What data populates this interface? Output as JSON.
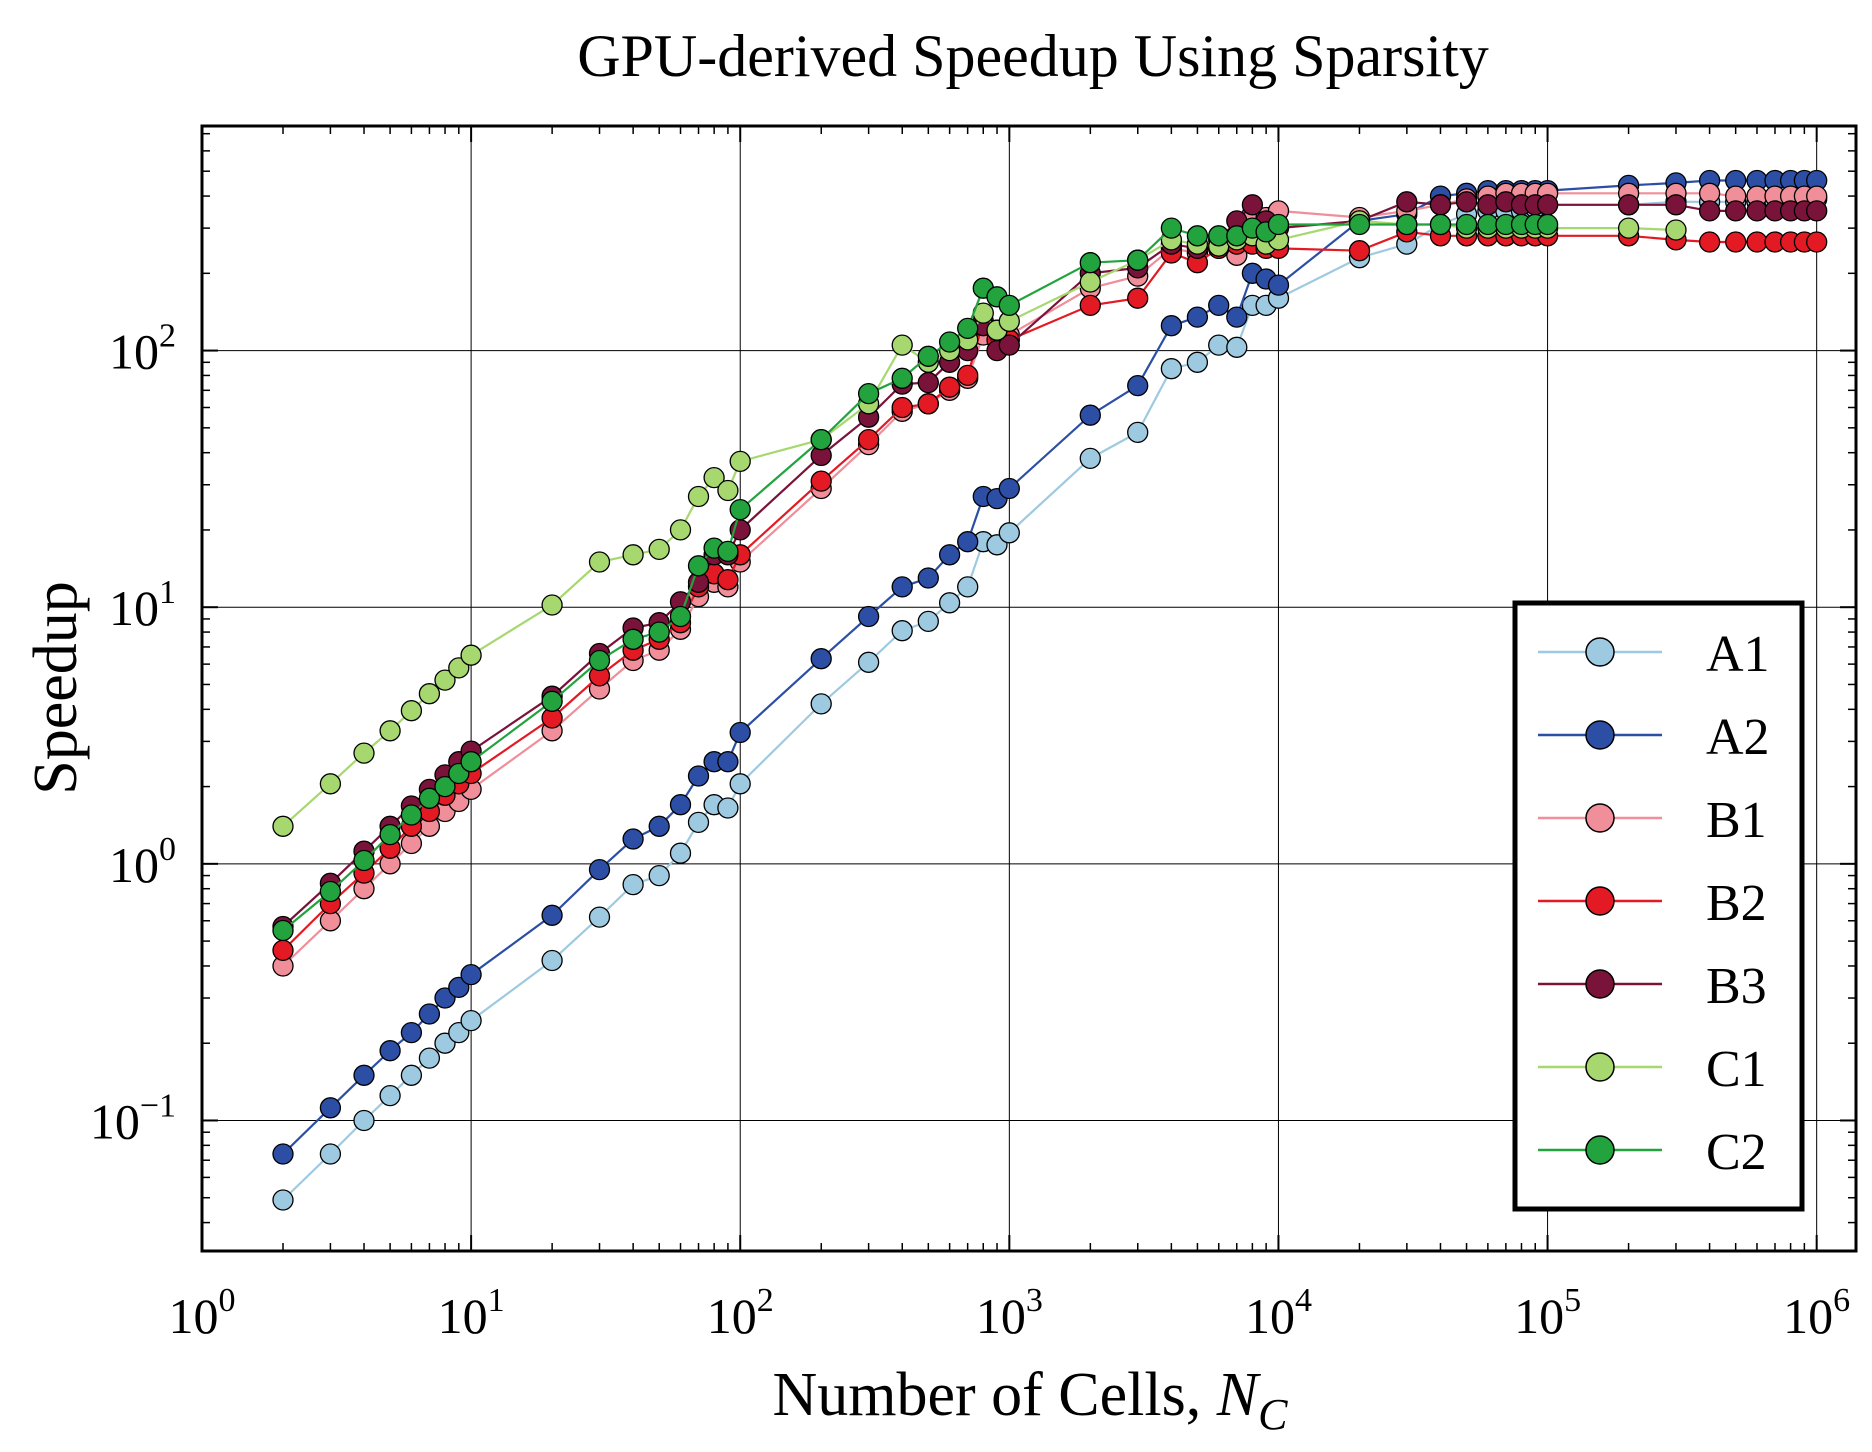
{
  "chart_data": {
    "type": "line",
    "title": "GPU-derived Speedup Using Sparsity",
    "xlabel": "Number of Cells, ",
    "xlabel_symbol": "N",
    "xlabel_subscript": "C",
    "ylabel": "Speedup",
    "xscale": "log",
    "yscale": "log",
    "xlim": [
      1,
      1400000
    ],
    "ylim": [
      0.031,
      750
    ],
    "grid": true,
    "legend_position": "right",
    "x_tick_labels": [
      {
        "value": 1,
        "base": "10",
        "exp": "0"
      },
      {
        "value": 10,
        "base": "10",
        "exp": "1"
      },
      {
        "value": 100,
        "base": "10",
        "exp": "2"
      },
      {
        "value": 1000,
        "base": "10",
        "exp": "3"
      },
      {
        "value": 10000,
        "base": "10",
        "exp": "4"
      },
      {
        "value": 100000,
        "base": "10",
        "exp": "5"
      },
      {
        "value": 1000000,
        "base": "10",
        "exp": "6"
      }
    ],
    "y_tick_labels": [
      {
        "value": 0.1,
        "base": "10",
        "exp": "−1"
      },
      {
        "value": 1,
        "base": "10",
        "exp": "0"
      },
      {
        "value": 10,
        "base": "10",
        "exp": "1"
      },
      {
        "value": 100,
        "base": "10",
        "exp": "2"
      }
    ],
    "series": [
      {
        "name": "A1",
        "color": "#9ecae1",
        "x": [
          2,
          3,
          4,
          5,
          6,
          7,
          8,
          9,
          10,
          20,
          30,
          40,
          50,
          60,
          70,
          80,
          90,
          100,
          200,
          300,
          400,
          500,
          600,
          700,
          800,
          900,
          1000,
          2000,
          3000,
          4000,
          5000,
          6000,
          7000,
          8000,
          9000,
          10000,
          20000,
          30000,
          40000,
          50000,
          60000,
          70000,
          80000,
          90000,
          100000,
          200000,
          300000,
          400000,
          500000,
          600000,
          700000,
          800000,
          900000,
          1000000
        ],
        "y": [
          0.049,
          0.074,
          0.1,
          0.125,
          0.15,
          0.175,
          0.2,
          0.22,
          0.245,
          0.42,
          0.62,
          0.83,
          0.9,
          1.1,
          1.45,
          1.7,
          1.65,
          2.05,
          4.2,
          6.1,
          8.1,
          8.8,
          10.4,
          12,
          18,
          17.5,
          19.5,
          38,
          48,
          85,
          90,
          105,
          103,
          150,
          150,
          160,
          230,
          260,
          310,
          340,
          350,
          350,
          350,
          360,
          370,
          370,
          380,
          380,
          380,
          380,
          380,
          390,
          390,
          390
        ]
      },
      {
        "name": "A2",
        "color": "#2c4fa5",
        "x": [
          2,
          3,
          4,
          5,
          6,
          7,
          8,
          9,
          10,
          20,
          30,
          40,
          50,
          60,
          70,
          80,
          90,
          100,
          200,
          300,
          400,
          500,
          600,
          700,
          800,
          900,
          1000,
          2000,
          3000,
          4000,
          5000,
          6000,
          7000,
          8000,
          9000,
          10000,
          20000,
          30000,
          40000,
          50000,
          60000,
          70000,
          80000,
          90000,
          100000,
          200000,
          300000,
          400000,
          500000,
          600000,
          700000,
          800000,
          900000,
          1000000
        ],
        "y": [
          0.074,
          0.112,
          0.15,
          0.187,
          0.22,
          0.26,
          0.3,
          0.33,
          0.37,
          0.63,
          0.95,
          1.25,
          1.4,
          1.7,
          2.2,
          2.5,
          2.5,
          3.25,
          6.3,
          9.2,
          12,
          13,
          16,
          18,
          27,
          26.5,
          29,
          56,
          73,
          125,
          135,
          150,
          135,
          200,
          190,
          180,
          320,
          340,
          400,
          410,
          420,
          420,
          420,
          420,
          420,
          440,
          450,
          460,
          460,
          460,
          460,
          460,
          460,
          460
        ]
      },
      {
        "name": "B1",
        "color": "#f08e9a",
        "x": [
          2,
          3,
          4,
          5,
          6,
          7,
          8,
          9,
          10,
          20,
          30,
          40,
          50,
          60,
          70,
          80,
          90,
          100,
          200,
          300,
          400,
          500,
          600,
          700,
          800,
          900,
          1000,
          2000,
          3000,
          4000,
          5000,
          6000,
          7000,
          8000,
          9000,
          10000,
          20000,
          30000,
          40000,
          50000,
          60000,
          70000,
          80000,
          90000,
          100000,
          200000,
          300000,
          400000,
          500000,
          600000,
          700000,
          800000,
          900000,
          1000000
        ],
        "y": [
          0.4,
          0.6,
          0.8,
          1.0,
          1.2,
          1.4,
          1.6,
          1.75,
          1.95,
          3.3,
          4.8,
          6.2,
          6.8,
          8.2,
          11,
          12.5,
          12,
          15,
          29,
          43,
          58,
          62,
          70,
          78,
          115,
          120,
          115,
          175,
          195,
          250,
          240,
          250,
          235,
          340,
          330,
          350,
          330,
          350,
          370,
          390,
          400,
          410,
          410,
          410,
          410,
          410,
          410,
          410,
          400,
          400,
          400,
          400,
          400,
          400
        ]
      },
      {
        "name": "B2",
        "color": "#e31a24",
        "x": [
          2,
          3,
          4,
          5,
          6,
          7,
          8,
          9,
          10,
          20,
          30,
          40,
          50,
          60,
          70,
          80,
          90,
          100,
          200,
          300,
          400,
          500,
          600,
          700,
          800,
          900,
          1000,
          2000,
          3000,
          4000,
          5000,
          6000,
          7000,
          8000,
          9000,
          10000,
          20000,
          30000,
          40000,
          50000,
          60000,
          70000,
          80000,
          90000,
          100000,
          200000,
          300000,
          400000,
          500000,
          600000,
          700000,
          800000,
          900000,
          1000000
        ],
        "y": [
          0.46,
          0.7,
          0.92,
          1.15,
          1.4,
          1.6,
          1.85,
          2.05,
          2.25,
          3.7,
          5.4,
          6.8,
          7.5,
          8.7,
          12,
          13.5,
          12.8,
          16,
          31,
          45,
          60,
          62,
          72,
          80,
          130,
          110,
          110,
          150,
          160,
          240,
          220,
          250,
          260,
          260,
          250,
          250,
          245,
          290,
          280,
          280,
          280,
          280,
          280,
          280,
          280,
          280,
          270,
          265,
          265,
          265,
          265,
          265,
          265,
          265
        ]
      },
      {
        "name": "B3",
        "color": "#7a1339",
        "x": [
          2,
          3,
          4,
          5,
          6,
          7,
          8,
          9,
          10,
          20,
          30,
          40,
          50,
          60,
          70,
          80,
          90,
          100,
          200,
          300,
          400,
          500,
          600,
          700,
          800,
          900,
          1000,
          2000,
          3000,
          4000,
          5000,
          6000,
          7000,
          8000,
          9000,
          10000,
          20000,
          30000,
          40000,
          50000,
          60000,
          70000,
          80000,
          90000,
          100000,
          200000,
          300000,
          400000,
          500000,
          600000,
          700000,
          800000,
          900000,
          1000000
        ],
        "y": [
          0.57,
          0.84,
          1.12,
          1.4,
          1.68,
          1.95,
          2.22,
          2.5,
          2.75,
          4.5,
          6.6,
          8.3,
          8.7,
          10.5,
          12.5,
          16,
          16,
          20,
          39,
          55,
          74,
          75,
          90,
          100,
          125,
          100,
          105,
          200,
          210,
          260,
          250,
          270,
          320,
          370,
          320,
          300,
          320,
          380,
          370,
          380,
          370,
          380,
          370,
          370,
          370,
          370,
          370,
          350,
          350,
          350,
          350,
          350,
          350,
          350
        ]
      },
      {
        "name": "C1",
        "color": "#a6d86f",
        "x": [
          2,
          3,
          4,
          5,
          6,
          7,
          8,
          9,
          10,
          20,
          30,
          40,
          50,
          60,
          70,
          80,
          90,
          100,
          200,
          300,
          400,
          500,
          600,
          700,
          800,
          900,
          1000,
          2000,
          3000,
          4000,
          5000,
          6000,
          7000,
          8000,
          9000,
          10000,
          20000,
          30000,
          40000,
          50000,
          60000,
          70000,
          80000,
          90000,
          100000,
          200000,
          300000
        ],
        "y": [
          1.4,
          2.05,
          2.7,
          3.3,
          3.95,
          4.6,
          5.2,
          5.8,
          6.5,
          10.2,
          15,
          16,
          16.8,
          20,
          27,
          32,
          28.5,
          37,
          45,
          62,
          105,
          90,
          100,
          110,
          140,
          120,
          130,
          185,
          225,
          270,
          260,
          255,
          270,
          280,
          260,
          270,
          320,
          310,
          310,
          300,
          300,
          300,
          300,
          300,
          300,
          300,
          295
        ]
      },
      {
        "name": "C2",
        "color": "#22a33e",
        "x": [
          2,
          3,
          4,
          5,
          6,
          7,
          8,
          9,
          10,
          20,
          30,
          40,
          50,
          60,
          70,
          80,
          90,
          100,
          200,
          300,
          400,
          500,
          600,
          700,
          800,
          900,
          1000,
          2000,
          3000,
          4000,
          5000,
          6000,
          7000,
          8000,
          9000,
          10000,
          20000,
          30000,
          40000,
          50000,
          60000,
          70000,
          80000,
          90000,
          100000
        ],
        "y": [
          0.55,
          0.78,
          1.03,
          1.3,
          1.55,
          1.8,
          2.0,
          2.25,
          2.5,
          4.3,
          6.2,
          7.5,
          8.0,
          9.2,
          14.5,
          17,
          16.5,
          24,
          45,
          68,
          78,
          95,
          108,
          122,
          175,
          162,
          150,
          220,
          225,
          300,
          280,
          280,
          280,
          300,
          290,
          310,
          310,
          310,
          310,
          310,
          310,
          310,
          310,
          310,
          310
        ]
      }
    ]
  }
}
